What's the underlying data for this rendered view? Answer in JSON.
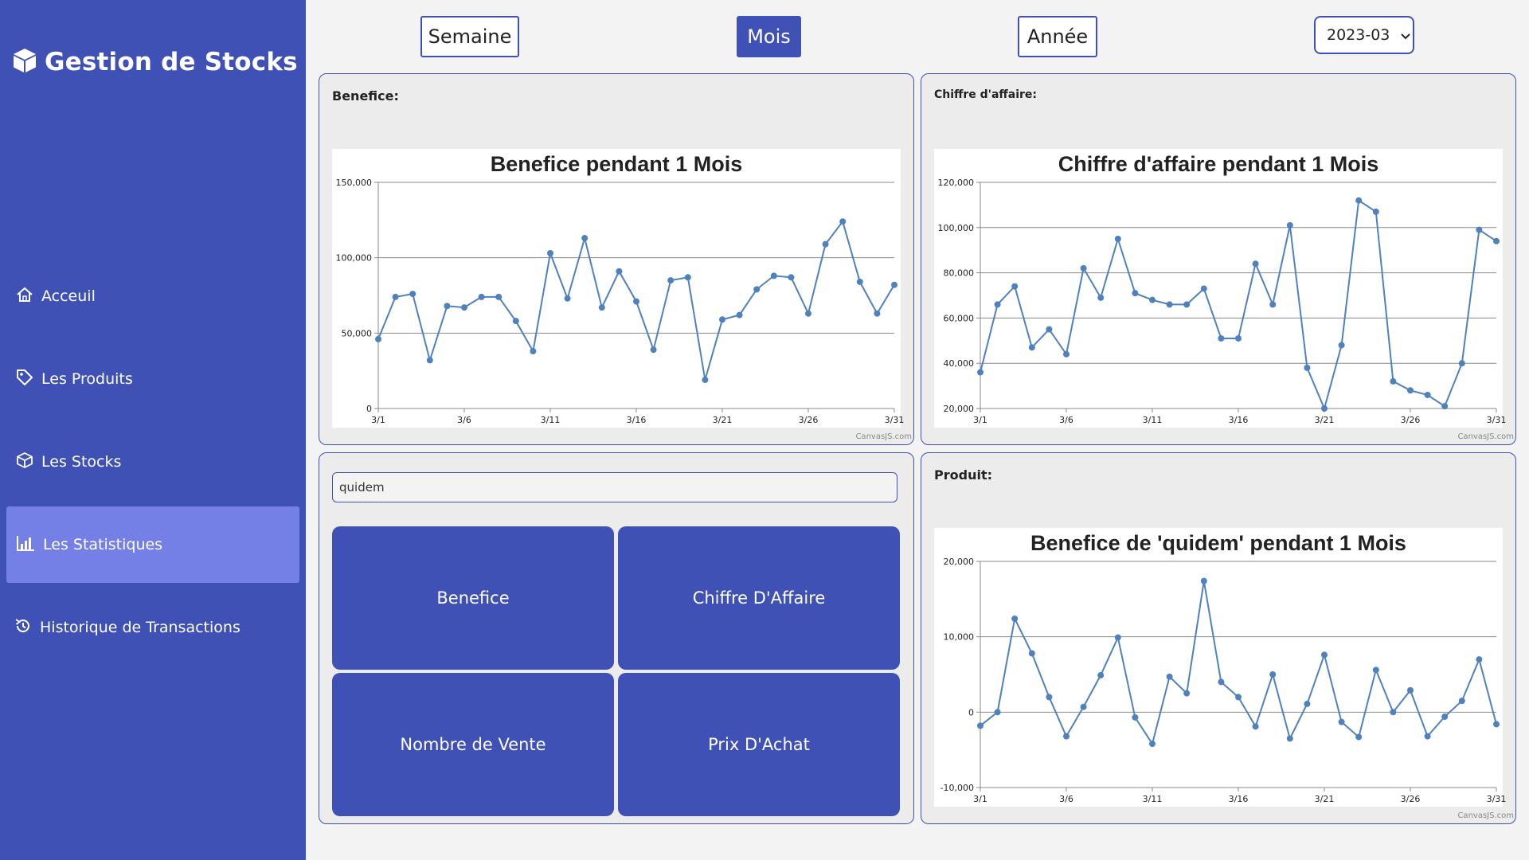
{
  "app": {
    "title": "Gestion de Stocks"
  },
  "sidebar": {
    "items": [
      {
        "label": "Acceuil",
        "icon": "home-icon"
      },
      {
        "label": "Les Produits",
        "icon": "tag-icon"
      },
      {
        "label": "Les Stocks",
        "icon": "box-icon"
      },
      {
        "label": "Les Statistiques",
        "icon": "bar-chart-icon",
        "active": true
      },
      {
        "label": "Historique de Transactions",
        "icon": "history-icon"
      }
    ]
  },
  "period": {
    "week_label": "Semaine",
    "month_label": "Mois",
    "year_label": "Année",
    "selected": "Mois",
    "month_value": "2023-03"
  },
  "panels": {
    "benefice_label": "Benefice:",
    "ca_label": "Chiffre d'affaire:",
    "produit_label": "Produit:",
    "credit": "CanvasJS.com"
  },
  "search": {
    "value": "quidem"
  },
  "buttons": {
    "benefice": "Benefice",
    "chiffre": "Chiffre D'Affaire",
    "ventes": "Nombre de Vente",
    "achat": "Prix D'Achat"
  },
  "colors": {
    "accent": "#3f51b5",
    "active_nav": "#7480e6",
    "line": "#4f81bc"
  },
  "chart_data": [
    {
      "type": "line",
      "title": "Benefice pendant 1 Mois",
      "x": [
        "3/1",
        "3/2",
        "3/3",
        "3/4",
        "3/5",
        "3/6",
        "3/7",
        "3/8",
        "3/9",
        "3/10",
        "3/11",
        "3/12",
        "3/13",
        "3/14",
        "3/15",
        "3/16",
        "3/17",
        "3/18",
        "3/19",
        "3/20",
        "3/21",
        "3/22",
        "3/23",
        "3/24",
        "3/25",
        "3/26",
        "3/27",
        "3/28",
        "3/29",
        "3/30",
        "3/31"
      ],
      "x_ticks": [
        "3/1",
        "3/6",
        "3/11",
        "3/16",
        "3/21",
        "3/26",
        "3/31"
      ],
      "values": [
        46000,
        74000,
        76000,
        32000,
        68000,
        67000,
        74000,
        74000,
        58000,
        38000,
        103000,
        73000,
        113000,
        67000,
        91000,
        71000,
        39000,
        85000,
        87000,
        19000,
        59000,
        62000,
        79000,
        88000,
        87000,
        63000,
        109000,
        124000,
        84000,
        63000,
        82000
      ],
      "ylim": [
        0,
        150000
      ],
      "y_ticks": [
        0,
        50000,
        100000,
        150000
      ],
      "y_tick_labels": [
        "0",
        "50,000",
        "100,000",
        "150,000"
      ],
      "grid": true
    },
    {
      "type": "line",
      "title": "Chiffre d'affaire pendant 1 Mois",
      "x": [
        "3/1",
        "3/2",
        "3/3",
        "3/4",
        "3/5",
        "3/6",
        "3/7",
        "3/8",
        "3/9",
        "3/10",
        "3/11",
        "3/12",
        "3/13",
        "3/14",
        "3/15",
        "3/16",
        "3/17",
        "3/18",
        "3/19",
        "3/20",
        "3/21",
        "3/22",
        "3/23",
        "3/24",
        "3/25",
        "3/26",
        "3/27",
        "3/28",
        "3/29",
        "3/30",
        "3/31"
      ],
      "x_ticks": [
        "3/1",
        "3/6",
        "3/11",
        "3/16",
        "3/21",
        "3/26",
        "3/31"
      ],
      "values": [
        36000,
        66000,
        74000,
        47000,
        55000,
        44000,
        82000,
        69000,
        95000,
        71000,
        68000,
        66000,
        66000,
        73000,
        51000,
        51000,
        84000,
        66000,
        101000,
        38000,
        20000,
        48000,
        112000,
        107000,
        32000,
        28000,
        26000,
        21000,
        40000,
        99000,
        94000
      ],
      "ylim": [
        20000,
        120000
      ],
      "y_ticks": [
        20000,
        40000,
        60000,
        80000,
        100000,
        120000
      ],
      "y_tick_labels": [
        "20,000",
        "40,000",
        "60,000",
        "80,000",
        "100,000",
        "120,000"
      ],
      "grid": true
    },
    {
      "type": "line",
      "title": "Benefice de 'quidem' pendant 1 Mois",
      "x": [
        "3/1",
        "3/2",
        "3/3",
        "3/4",
        "3/5",
        "3/6",
        "3/7",
        "3/8",
        "3/9",
        "3/10",
        "3/11",
        "3/12",
        "3/13",
        "3/14",
        "3/15",
        "3/16",
        "3/17",
        "3/18",
        "3/19",
        "3/20",
        "3/21",
        "3/22",
        "3/23",
        "3/24",
        "3/25",
        "3/26",
        "3/27",
        "3/28",
        "3/29",
        "3/30",
        "3/31"
      ],
      "x_ticks": [
        "3/1",
        "3/6",
        "3/11",
        "3/16",
        "3/21",
        "3/26",
        "3/31"
      ],
      "values": [
        -1800,
        0,
        12400,
        7800,
        2000,
        -3200,
        700,
        4900,
        9900,
        -700,
        -4200,
        4700,
        2500,
        17400,
        4000,
        2000,
        -1900,
        5000,
        -3500,
        1100,
        7600,
        -1300,
        -3300,
        5600,
        0,
        2900,
        -3200,
        -600,
        1500,
        7000,
        -1600
      ],
      "ylim": [
        -10000,
        20000
      ],
      "y_ticks": [
        -10000,
        0,
        10000,
        20000
      ],
      "y_tick_labels": [
        "-10,000",
        "0",
        "10,000",
        "20,000"
      ],
      "grid": true
    }
  ]
}
